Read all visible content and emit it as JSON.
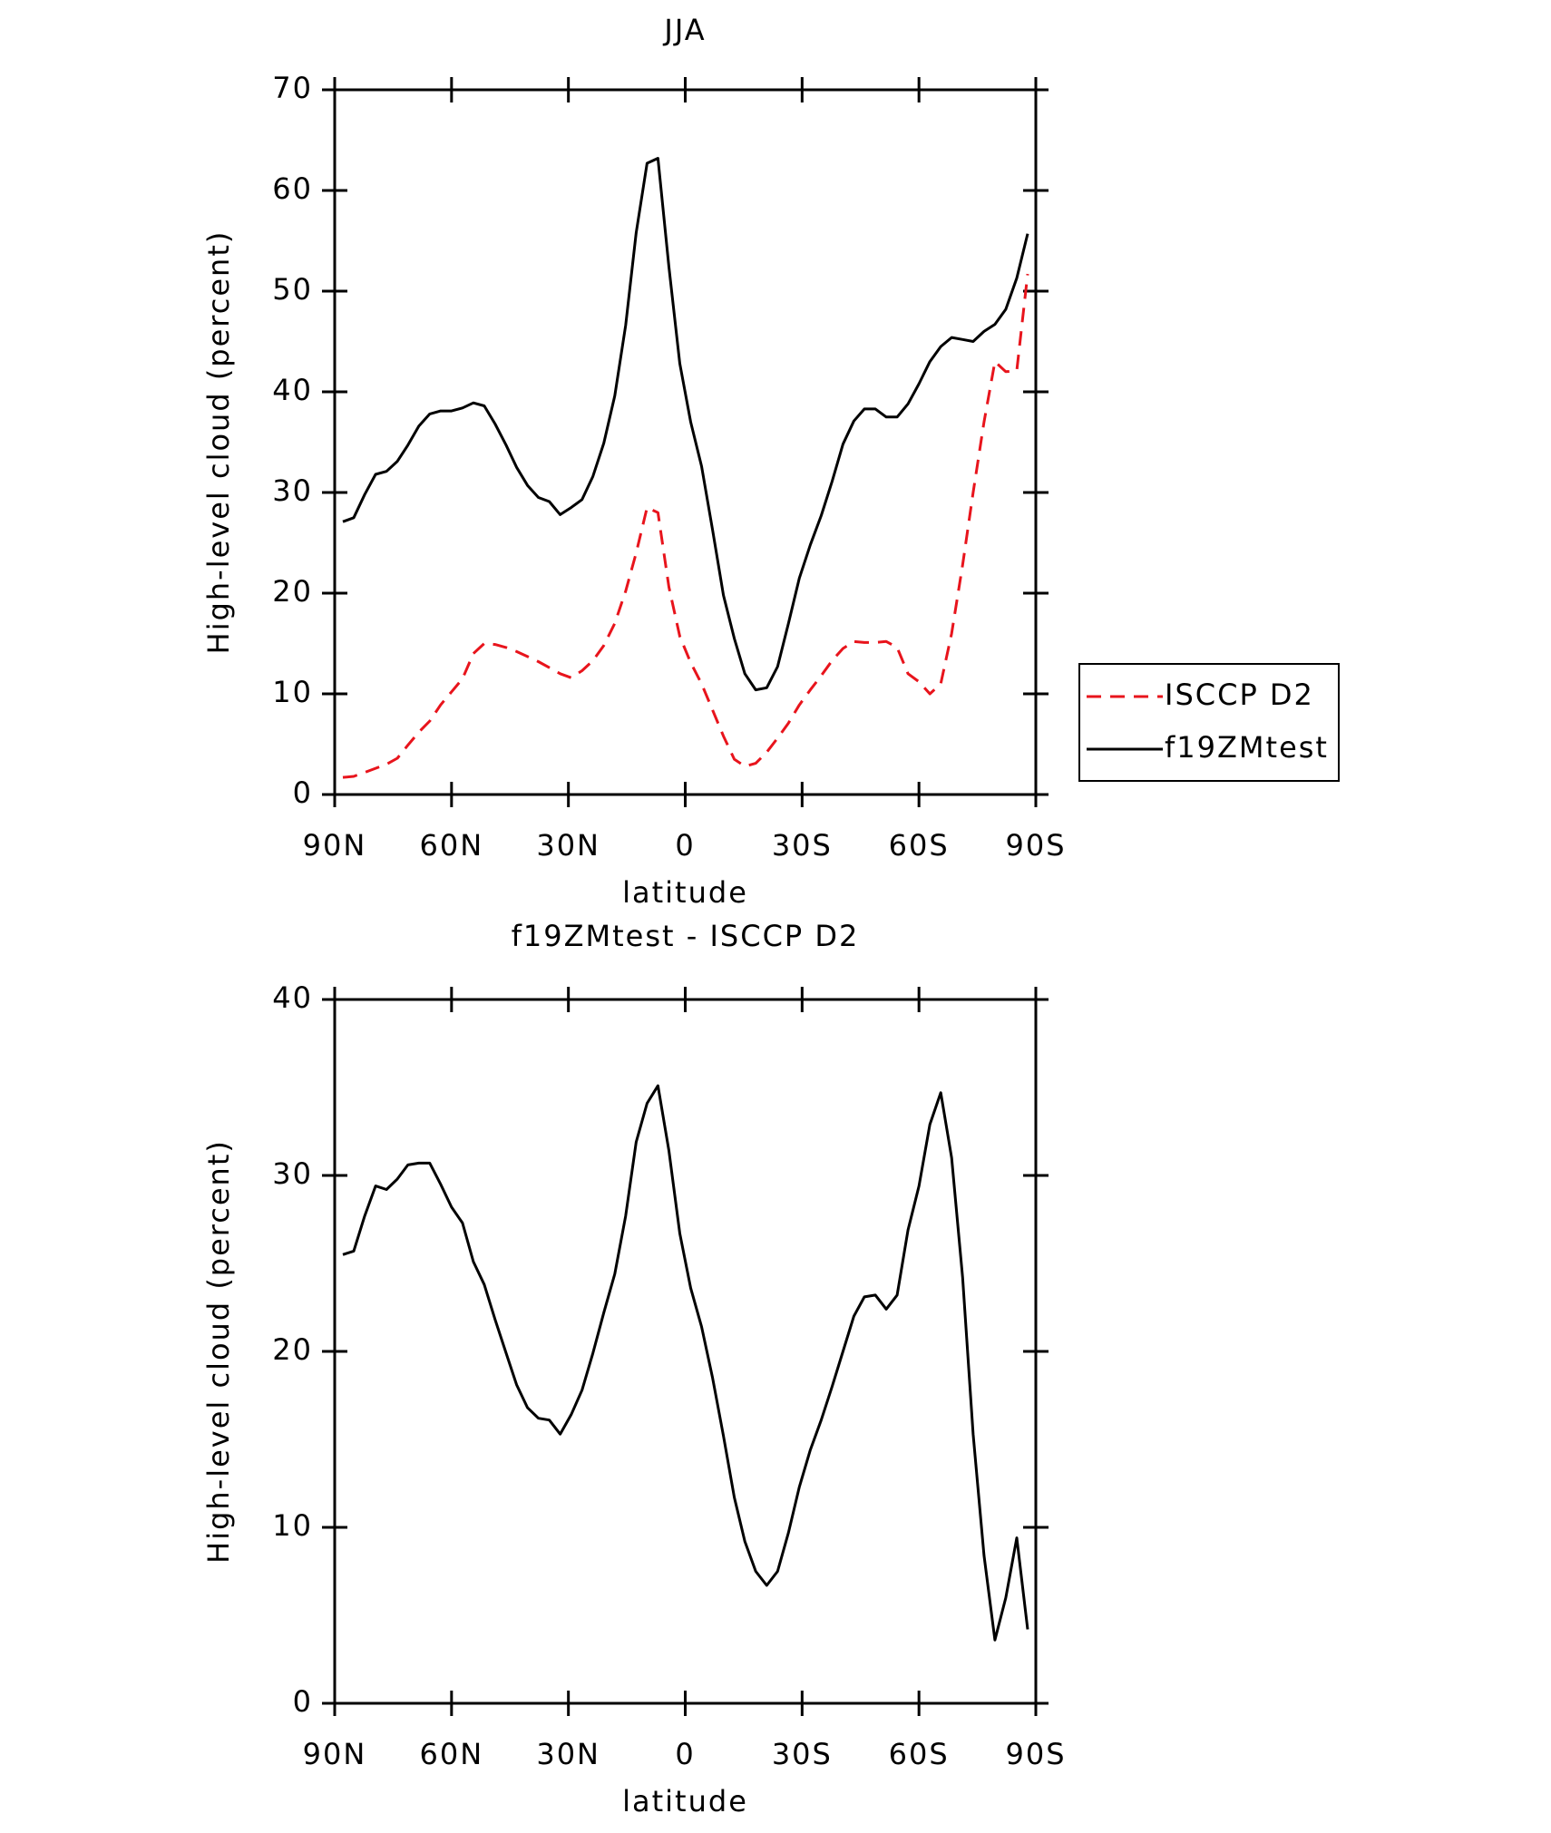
{
  "chart_data": [
    {
      "type": "line",
      "title": "JJA",
      "xlabel": "latitude",
      "ylabel": "High-level cloud (percent)",
      "x": [
        87.9,
        85.1,
        82.3,
        79.5,
        76.7,
        73.9,
        71.2,
        68.4,
        65.6,
        62.8,
        60.0,
        57.2,
        54.4,
        51.6,
        48.8,
        46.0,
        43.3,
        40.5,
        37.7,
        34.9,
        32.1,
        29.3,
        26.5,
        23.7,
        20.9,
        18.1,
        15.3,
        12.6,
        9.8,
        7.0,
        4.2,
        1.4,
        -1.4,
        -4.2,
        -7.0,
        -9.8,
        -12.6,
        -15.3,
        -18.1,
        -20.9,
        -23.7,
        -26.5,
        -29.3,
        -32.1,
        -34.9,
        -37.7,
        -40.5,
        -43.3,
        -46.0,
        -48.8,
        -51.6,
        -54.4,
        -57.2,
        -60.0,
        -62.8,
        -65.6,
        -68.4,
        -71.2,
        -73.9,
        -76.7,
        -79.5,
        -82.3,
        -85.1,
        -87.9
      ],
      "series": [
        {
          "name": "ISCCP D2",
          "color": "#e8141c",
          "dash": true,
          "values": [
            1.7,
            1.8,
            2.2,
            2.6,
            3.0,
            3.6,
            4.9,
            6.2,
            7.3,
            8.9,
            10.2,
            11.5,
            14.0,
            15.0,
            14.9,
            14.6,
            14.2,
            13.7,
            13.2,
            12.6,
            12.0,
            11.6,
            12.3,
            13.3,
            14.8,
            17.0,
            20.2,
            24.0,
            28.5,
            28.0,
            20.6,
            15.7,
            13.1,
            11.0,
            8.4,
            5.8,
            3.5,
            2.8,
            3.1,
            4.2,
            5.6,
            7.1,
            8.9,
            10.4,
            11.8,
            13.3,
            14.5,
            15.2,
            15.1,
            15.1,
            15.2,
            14.6,
            12.0,
            11.2,
            10.0,
            11.0,
            16.0,
            22.8,
            30.0,
            37.0,
            43.0,
            42.0,
            42.1,
            51.7
          ]
        },
        {
          "name": "f19ZMtest",
          "color": "#000000",
          "dash": false,
          "values": [
            27.1,
            27.5,
            29.8,
            31.8,
            32.1,
            33.1,
            34.7,
            36.6,
            37.8,
            38.1,
            38.1,
            38.4,
            38.9,
            38.6,
            36.8,
            34.7,
            32.5,
            30.7,
            29.5,
            29.1,
            27.8,
            28.5,
            29.3,
            31.6,
            34.9,
            39.6,
            46.6,
            55.8,
            62.7,
            63.2,
            52.4,
            42.8,
            37.0,
            32.6,
            26.3,
            19.8,
            15.5,
            12.0,
            10.4,
            10.6,
            12.7,
            17.0,
            21.5,
            24.8,
            27.7,
            31.1,
            34.8,
            37.1,
            38.3,
            38.3,
            37.5,
            37.5,
            38.8,
            40.8,
            43.0,
            44.5,
            45.4,
            45.2,
            45.0,
            46.0,
            46.7,
            48.2,
            51.3,
            55.7
          ]
        }
      ],
      "xlim": [
        90,
        -90
      ],
      "xticks": [
        {
          "value": 90,
          "label": "90N"
        },
        {
          "value": 60,
          "label": "60N"
        },
        {
          "value": 30,
          "label": "30N"
        },
        0,
        {
          "value": -30,
          "label": "30S"
        },
        {
          "value": -60,
          "label": "60S"
        },
        {
          "value": -90,
          "label": "90S"
        }
      ],
      "ylim": [
        0,
        70
      ],
      "yticks": [
        0,
        10,
        20,
        30,
        40,
        50,
        60,
        70
      ],
      "legend": "right"
    },
    {
      "type": "line",
      "title": "f19ZMtest - ISCCP D2",
      "xlabel": "latitude",
      "ylabel": "High-level cloud (percent)",
      "x": [
        87.9,
        85.1,
        82.3,
        79.5,
        76.7,
        73.9,
        71.2,
        68.4,
        65.6,
        62.8,
        60.0,
        57.2,
        54.4,
        51.6,
        48.8,
        46.0,
        43.3,
        40.5,
        37.7,
        34.9,
        32.1,
        29.3,
        26.5,
        23.7,
        20.9,
        18.1,
        15.3,
        12.6,
        9.8,
        7.0,
        4.2,
        1.4,
        -1.4,
        -4.2,
        -7.0,
        -9.8,
        -12.6,
        -15.3,
        -18.1,
        -20.9,
        -23.7,
        -26.5,
        -29.3,
        -32.1,
        -34.9,
        -37.7,
        -40.5,
        -43.3,
        -46.0,
        -48.8,
        -51.6,
        -54.4,
        -57.2,
        -60.0,
        -62.8,
        -65.6,
        -68.4,
        -71.2,
        -73.9,
        -76.7,
        -79.5,
        -82.3,
        -85.1,
        -87.9
      ],
      "series": [
        {
          "color": "#000000",
          "dash": false,
          "values": [
            25.5,
            25.7,
            27.7,
            29.4,
            29.2,
            29.8,
            30.6,
            30.7,
            30.7,
            29.5,
            28.2,
            27.3,
            25.1,
            23.8,
            21.8,
            19.9,
            18.1,
            16.8,
            16.2,
            16.1,
            15.3,
            16.4,
            17.8,
            19.9,
            22.2,
            24.4,
            27.7,
            31.9,
            34.1,
            35.1,
            31.4,
            26.7,
            23.6,
            21.4,
            18.5,
            15.2,
            11.7,
            9.2,
            7.5,
            6.7,
            7.5,
            9.7,
            12.3,
            14.4,
            16.1,
            18.0,
            20.0,
            22.0,
            23.1,
            23.2,
            22.4,
            23.2,
            26.9,
            29.4,
            32.9,
            34.7,
            31.0,
            24.2,
            15.3,
            8.4,
            3.6,
            6.0,
            9.4,
            4.2
          ]
        }
      ],
      "xlim": [
        90,
        -90
      ],
      "xticks": [
        {
          "value": 90,
          "label": "90N"
        },
        {
          "value": 60,
          "label": "60N"
        },
        {
          "value": 30,
          "label": "30N"
        },
        0,
        {
          "value": -30,
          "label": "30S"
        },
        {
          "value": -60,
          "label": "60S"
        },
        {
          "value": -90,
          "label": "90S"
        }
      ],
      "ylim": [
        0,
        40
      ],
      "yticks": [
        0,
        10,
        20,
        30,
        40
      ]
    }
  ]
}
